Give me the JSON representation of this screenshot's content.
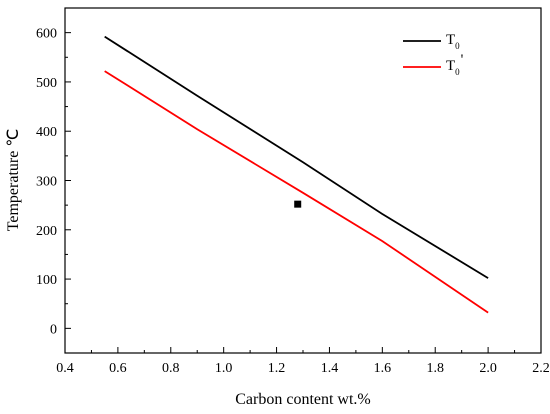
{
  "chart_data": {
    "type": "line",
    "xlabel": "Carbon content wt.%",
    "ylabel": "Temperature ℃",
    "xlim": [
      0.4,
      2.2
    ],
    "ylim": [
      -50,
      650
    ],
    "xticks": [
      "0.4",
      "0.6",
      "0.8",
      "1.0",
      "1.2",
      "1.4",
      "1.6",
      "1.8",
      "2.0",
      "2.2"
    ],
    "yticks": [
      "0",
      "100",
      "200",
      "300",
      "400",
      "500",
      "600"
    ],
    "legend_position": "top-right",
    "series": [
      {
        "name": "T0",
        "legend_main": "T",
        "legend_sub": "0",
        "legend_suffix": "",
        "color": "#000000",
        "x": [
          0.55,
          0.9,
          1.3,
          1.6,
          2.0
        ],
        "y": [
          592,
          472,
          337,
          232,
          102
        ]
      },
      {
        "name": "T0'",
        "legend_main": "T",
        "legend_sub": "0",
        "legend_suffix": "'",
        "color": "#ff0000",
        "x": [
          0.55,
          0.9,
          1.3,
          1.6,
          2.0
        ],
        "y": [
          522,
          404,
          275,
          177,
          32
        ]
      }
    ],
    "markers": [
      {
        "x": 1.28,
        "y": 252,
        "shape": "square",
        "color": "#000000"
      }
    ]
  }
}
